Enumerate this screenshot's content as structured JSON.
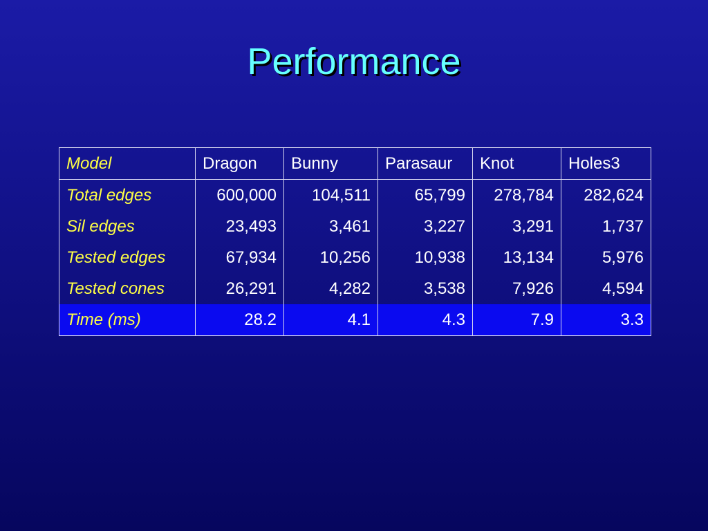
{
  "title": "Performance",
  "table": {
    "header": [
      "Model",
      "Dragon",
      "Bunny",
      "Parasaur",
      "Knot",
      "Holes3"
    ],
    "rows": [
      [
        "Total edges",
        "600,000",
        "104,511",
        "65,799",
        "278,784",
        "282,624"
      ],
      [
        "Sil edges",
        "23,493",
        "3,461",
        "3,227",
        "3,291",
        "1,737"
      ],
      [
        "Tested edges",
        "67,934",
        "10,256",
        "10,938",
        "13,134",
        "5,976"
      ],
      [
        "Tested cones",
        "26,291",
        "4,282",
        "3,538",
        "7,926",
        "4,594"
      ],
      [
        "Time (ms)",
        "28.2",
        "4.1",
        "4.3",
        "7.9",
        "3.3"
      ]
    ]
  }
}
